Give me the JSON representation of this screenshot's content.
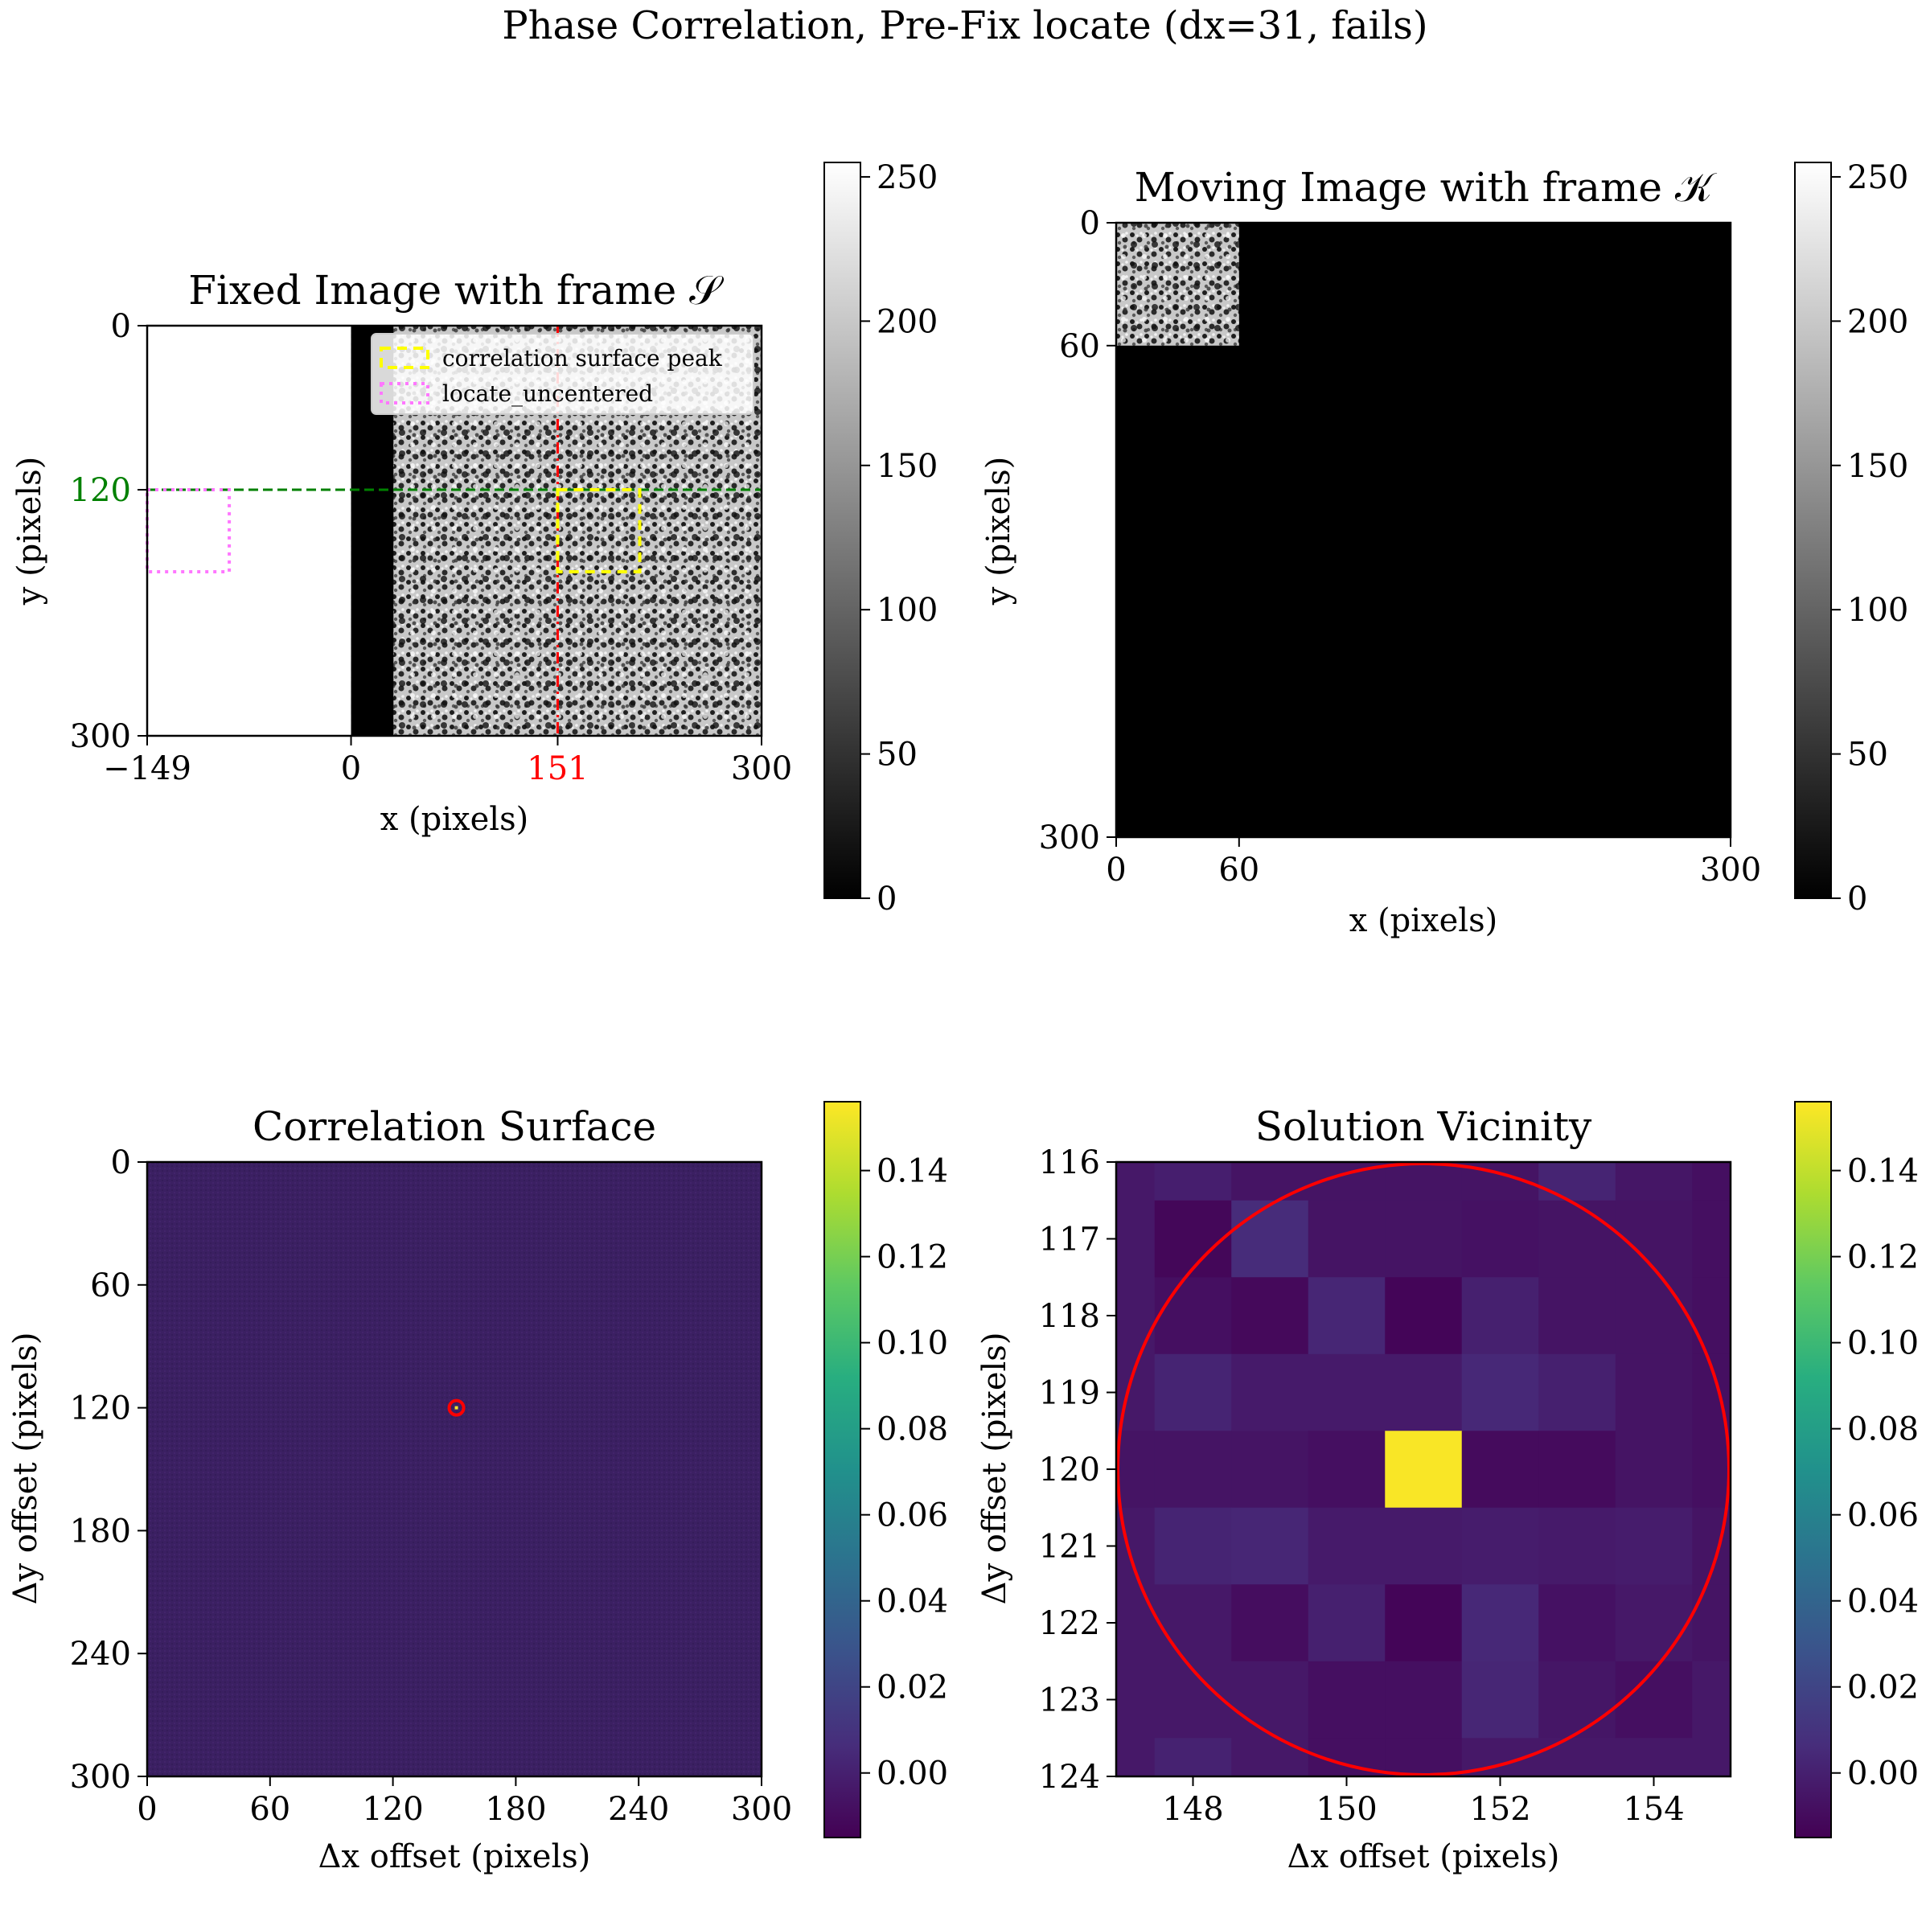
{
  "figure": {
    "suptitle": "Phase Correlation, Pre-Fix locate (dx=31, fails)"
  },
  "chart_data": [
    {
      "type": "heatmap",
      "panel": "fixed",
      "title": "Fixed Image with frame 𝒮",
      "xlabel": "x (pixels)",
      "ylabel": "y (pixels)",
      "xlim": [
        -149,
        300
      ],
      "ylim": [
        300,
        0
      ],
      "xticks": [
        {
          "value": -149,
          "label": "−149",
          "color": "#000000"
        },
        {
          "value": 0,
          "label": "0",
          "color": "#000000"
        },
        {
          "value": 151,
          "label": "151",
          "color": "#ff0000"
        },
        {
          "value": 300,
          "label": "300",
          "color": "#000000"
        }
      ],
      "yticks": [
        {
          "value": 0,
          "label": "0",
          "color": "#000000"
        },
        {
          "value": 120,
          "label": "120",
          "color": "#008000"
        },
        {
          "value": 300,
          "label": "300",
          "color": "#000000"
        }
      ],
      "image_extent_x": [
        0,
        300
      ],
      "black_band_x": [
        0,
        31
      ],
      "guide_lines": [
        {
          "orientation": "vertical",
          "value": 151,
          "color": "#ff0000",
          "style": "dash-dot"
        },
        {
          "orientation": "horizontal",
          "value": 120,
          "color": "#008000",
          "style": "dashed"
        }
      ],
      "boxes": [
        {
          "name": "correlation surface peak",
          "x": [
            151,
            211
          ],
          "y": [
            120,
            180
          ],
          "color": "#ffff00",
          "style": "dashed"
        },
        {
          "name": "locate_uncentered",
          "x": [
            -149,
            -89
          ],
          "y": [
            120,
            180
          ],
          "color": "#ff77ff",
          "style": "dotted"
        }
      ],
      "legend": {
        "placement": "upper right",
        "entries": [
          "correlation surface peak",
          "locate_uncentered"
        ]
      },
      "colormap": "gray",
      "colorbar": {
        "range": [
          0,
          255
        ],
        "ticks": [
          "0",
          "50",
          "100",
          "150",
          "200",
          "250"
        ]
      }
    },
    {
      "type": "heatmap",
      "panel": "moving",
      "title": "Moving Image with frame 𝒦",
      "xlabel": "x (pixels)",
      "ylabel": "y (pixels)",
      "xlim": [
        0,
        300
      ],
      "ylim": [
        300,
        0
      ],
      "xticks": [
        {
          "value": 0,
          "label": "0"
        },
        {
          "value": 60,
          "label": "60"
        },
        {
          "value": 300,
          "label": "300"
        }
      ],
      "yticks": [
        {
          "value": 0,
          "label": "0"
        },
        {
          "value": 60,
          "label": "60"
        },
        {
          "value": 300,
          "label": "300"
        }
      ],
      "patch": {
        "x": [
          0,
          60
        ],
        "y": [
          0,
          60
        ]
      },
      "background_value": 0,
      "colormap": "gray",
      "colorbar": {
        "range": [
          0,
          255
        ],
        "ticks": [
          "0",
          "50",
          "100",
          "150",
          "200",
          "250"
        ]
      }
    },
    {
      "type": "heatmap",
      "panel": "surface",
      "title": "Correlation Surface",
      "xlabel": "Δx offset (pixels)",
      "ylabel": "Δy offset (pixels)",
      "xlim": [
        0,
        300
      ],
      "ylim": [
        300,
        0
      ],
      "xticks": [
        "0",
        "60",
        "120",
        "180",
        "240",
        "300"
      ],
      "yticks": [
        "0",
        "60",
        "120",
        "180",
        "240",
        "300"
      ],
      "background_value": -0.005,
      "peak": {
        "x": 151,
        "y": 120,
        "value": 0.155
      },
      "marker": {
        "x": 151,
        "y": 120,
        "color": "#ff0000",
        "shape": "circle"
      },
      "colormap": "viridis",
      "colorbar": {
        "range": [
          -0.015,
          0.156
        ],
        "ticks": [
          "0.00",
          "0.02",
          "0.04",
          "0.06",
          "0.08",
          "0.10",
          "0.12",
          "0.14"
        ]
      }
    },
    {
      "type": "heatmap",
      "panel": "vicinity",
      "title": "Solution Vicinity",
      "xlabel": "Δx offset (pixels)",
      "ylabel": "Δy offset (pixels)",
      "xlim": [
        147,
        155
      ],
      "ylim": [
        124,
        116
      ],
      "xticks": [
        "148",
        "150",
        "152",
        "154"
      ],
      "yticks": [
        "116",
        "117",
        "118",
        "119",
        "120",
        "121",
        "122",
        "123",
        "124"
      ],
      "x": [
        147,
        148,
        149,
        150,
        151,
        152,
        153,
        154,
        155
      ],
      "y": [
        116,
        117,
        118,
        119,
        120,
        121,
        122,
        123,
        124
      ],
      "values": [
        [
          -0.004,
          -0.001,
          -0.006,
          -0.006,
          -0.006,
          -0.006,
          0.002,
          -0.005,
          -0.008
        ],
        [
          -0.004,
          -0.012,
          0.006,
          -0.006,
          -0.006,
          -0.007,
          -0.006,
          -0.006,
          -0.008
        ],
        [
          -0.004,
          -0.008,
          -0.011,
          0.003,
          -0.013,
          0.0,
          -0.006,
          -0.006,
          -0.008
        ],
        [
          -0.004,
          0.002,
          -0.003,
          -0.003,
          -0.003,
          0.004,
          0.0,
          -0.006,
          -0.008
        ],
        [
          -0.006,
          -0.006,
          -0.006,
          -0.008,
          0.155,
          -0.01,
          -0.01,
          -0.006,
          -0.008
        ],
        [
          -0.004,
          0.002,
          0.003,
          -0.003,
          -0.003,
          -0.002,
          -0.003,
          -0.002,
          -0.006
        ],
        [
          -0.004,
          -0.004,
          -0.009,
          0.0,
          -0.013,
          0.004,
          -0.007,
          -0.004,
          -0.006
        ],
        [
          -0.004,
          -0.004,
          -0.004,
          -0.008,
          -0.008,
          0.003,
          -0.005,
          -0.008,
          -0.004
        ],
        [
          -0.004,
          0.001,
          -0.004,
          -0.008,
          -0.008,
          -0.004,
          -0.004,
          -0.004,
          -0.004
        ]
      ],
      "marker": {
        "x": 151,
        "y": 120,
        "radius": 4,
        "color": "#ff0000",
        "shape": "circle"
      },
      "colormap": "viridis",
      "colorbar": {
        "range": [
          -0.015,
          0.156
        ],
        "ticks": [
          "0.00",
          "0.02",
          "0.04",
          "0.06",
          "0.08",
          "0.10",
          "0.12",
          "0.14"
        ]
      }
    }
  ]
}
